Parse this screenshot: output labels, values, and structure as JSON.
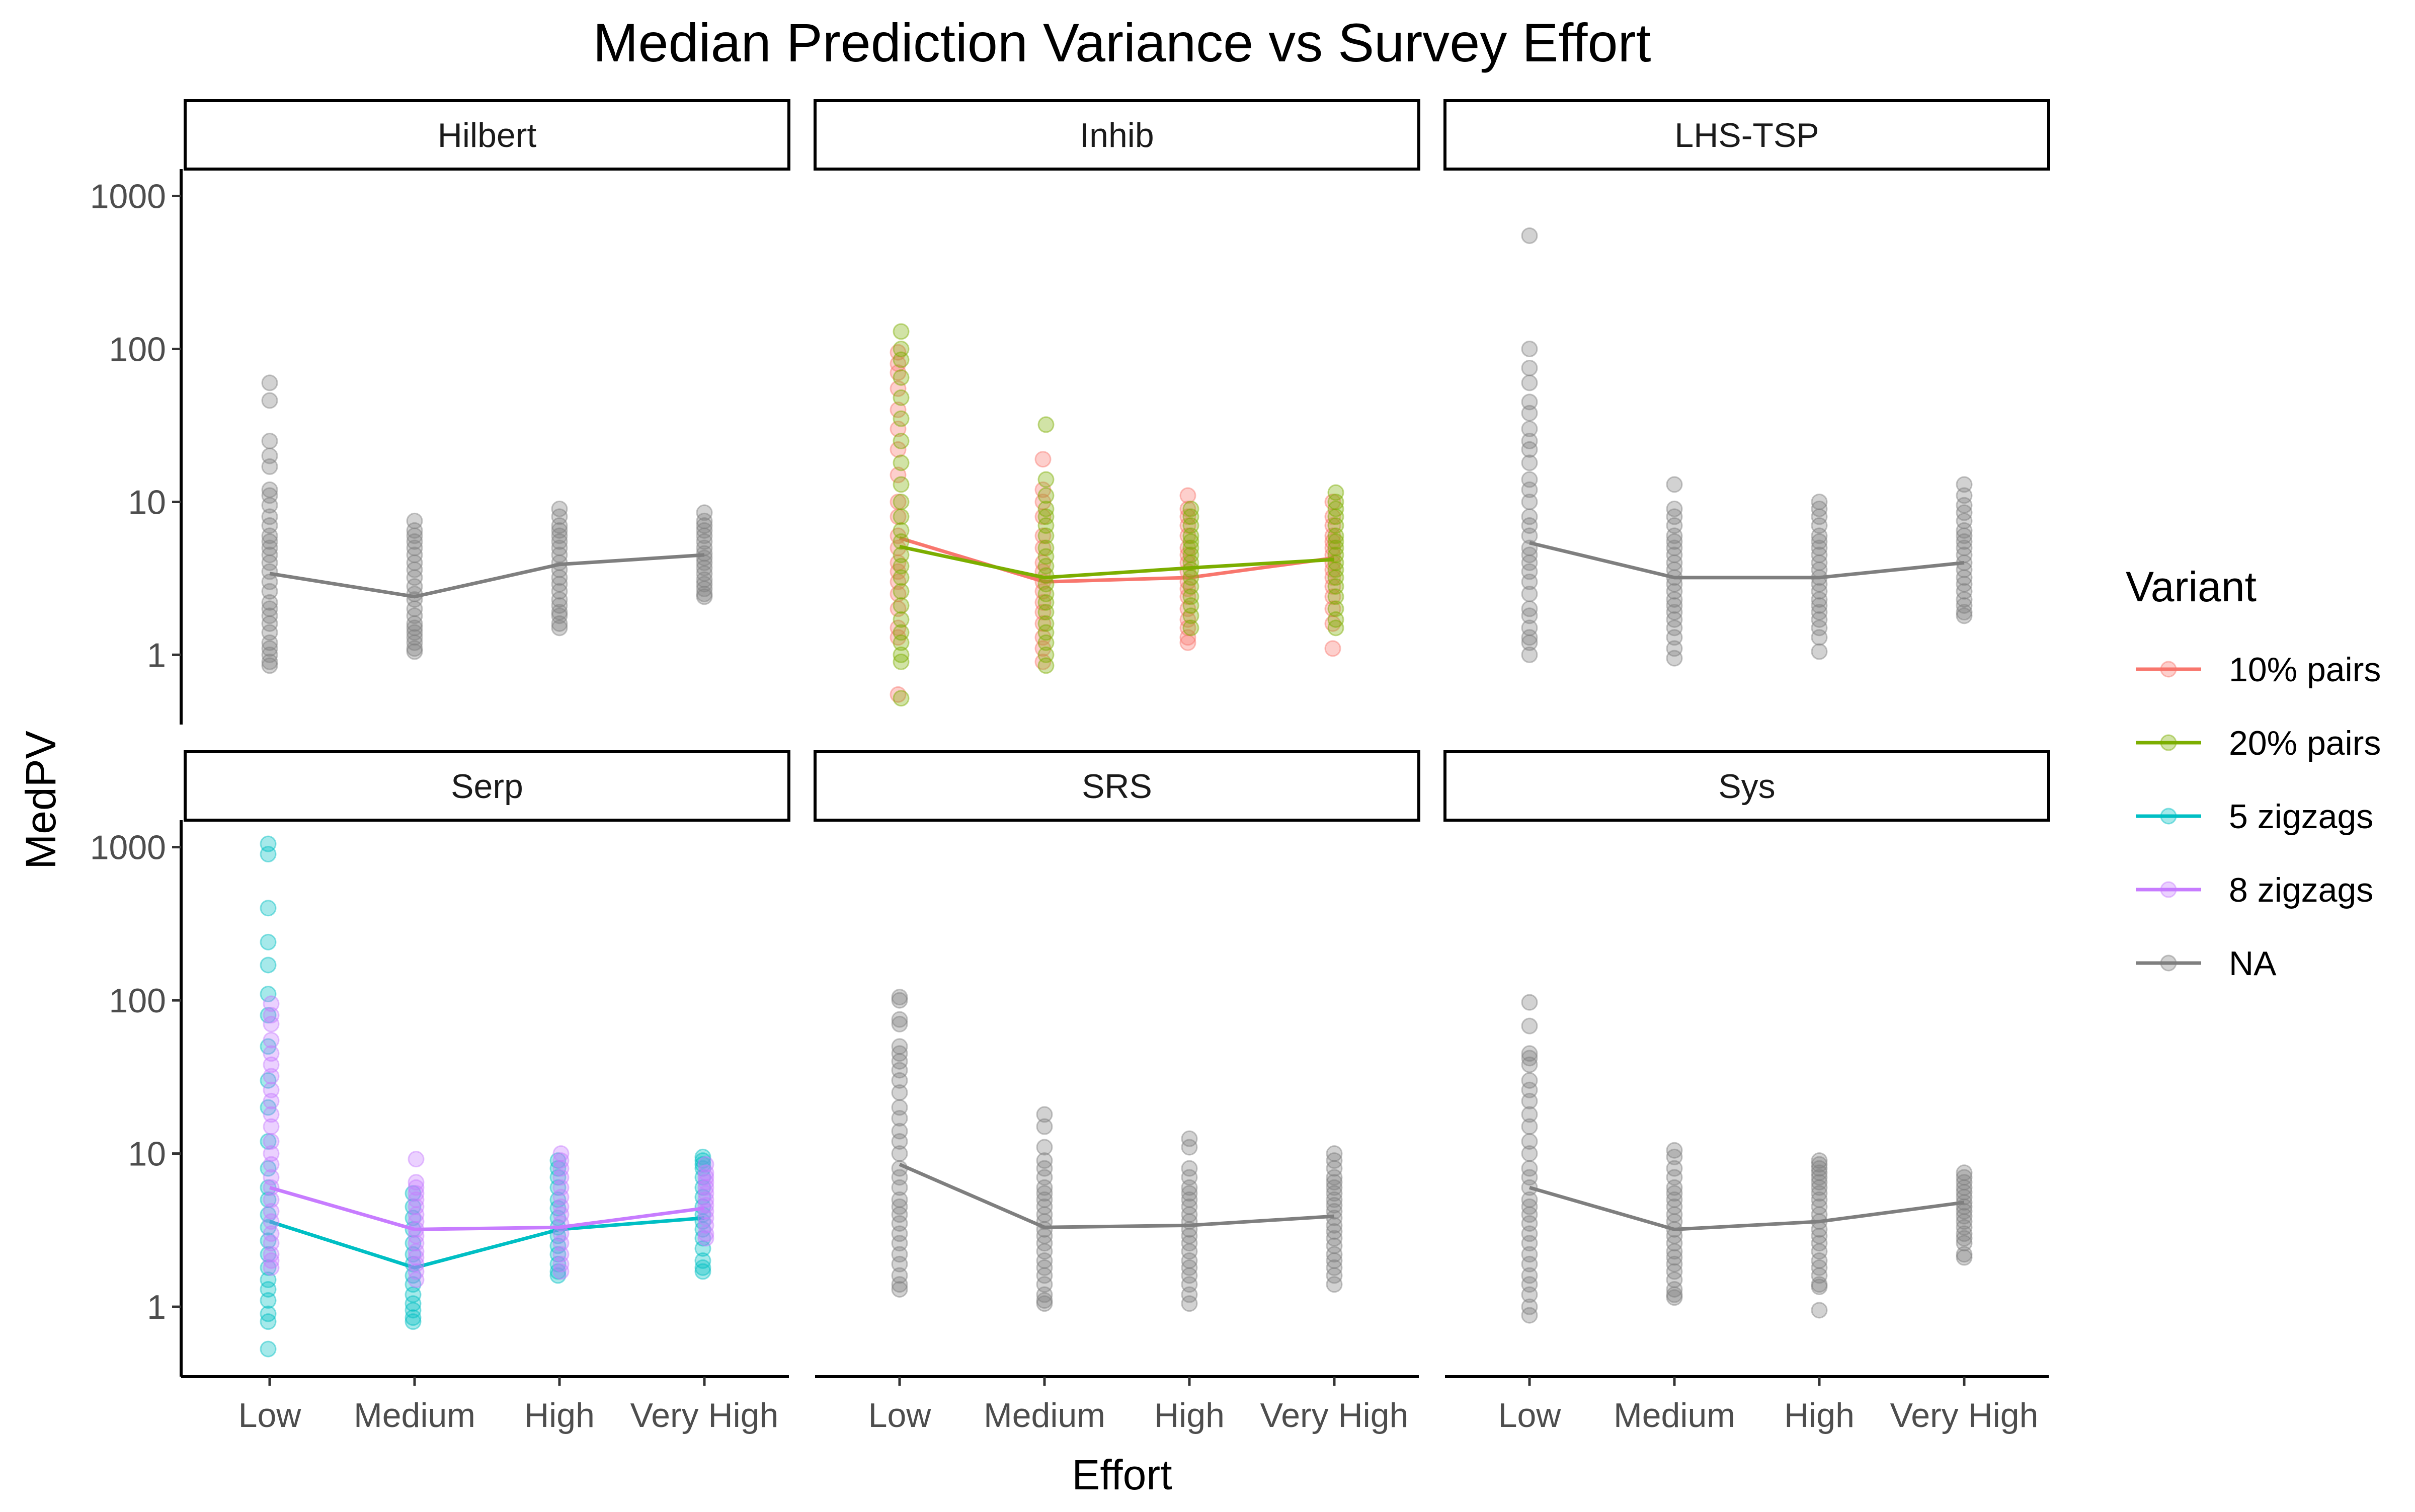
{
  "chart_data": {
    "type": "scatter",
    "title": "Median Prediction Variance vs Survey Effort",
    "xlabel": "Effort",
    "ylabel": "MedPV",
    "y_scale": "log10",
    "y_ticks": [
      1,
      10,
      100,
      1000
    ],
    "y_tick_labels": [
      "1",
      "10",
      "100",
      "1000"
    ],
    "ylim": [
      0.35,
      1500
    ],
    "categories": [
      "Low",
      "Medium",
      "High",
      "Very High"
    ],
    "grid": false,
    "legend": {
      "title": "Variant",
      "position": "right",
      "entries": [
        {
          "label": "10% pairs",
          "color": "#F8766D"
        },
        {
          "label": "20% pairs",
          "color": "#7CAE00"
        },
        {
          "label": "5 zigzags",
          "color": "#00BFC4"
        },
        {
          "label": "8 zigzags",
          "color": "#C77CFF"
        },
        {
          "label": "NA",
          "color": "#7F7F7F"
        }
      ]
    },
    "panels": [
      {
        "name": "Hilbert",
        "series": [
          {
            "variant": "NA",
            "color": "#7F7F7F",
            "medians": [
              3.4,
              2.4,
              3.9,
              4.5
            ],
            "points": [
              [
                60,
                46,
                25,
                20,
                17,
                12,
                11,
                9.5,
                8,
                7,
                6,
                5.5,
                5,
                4.5,
                4,
                3.5,
                3,
                2.6,
                2.2,
                2,
                1.8,
                1.6,
                1.4,
                1.2,
                1.1,
                1,
                0.9,
                0.85
              ],
              [
                7.5,
                6.5,
                6,
                5.5,
                5,
                4.5,
                4,
                3.6,
                3.2,
                2.8,
                2.5,
                2.3,
                2,
                1.8,
                1.6,
                1.5,
                1.4,
                1.3,
                1.2,
                1.1,
                1.05
              ],
              [
                9,
                8,
                7,
                6.5,
                6,
                5.5,
                5,
                4.5,
                4,
                3.6,
                3.2,
                2.9,
                2.6,
                2.3,
                2.1,
                1.9,
                1.8,
                1.6,
                1.5
              ],
              [
                8.5,
                7.5,
                7,
                6.5,
                6,
                5.5,
                5,
                4.6,
                4.3,
                4,
                3.7,
                3.4,
                3.1,
                2.9,
                2.7,
                2.5,
                2.4
              ]
            ]
          }
        ]
      },
      {
        "name": "Inhib",
        "series": [
          {
            "variant": "10% pairs",
            "color": "#F8766D",
            "medians": [
              5.8,
              3.0,
              3.2,
              4.3
            ],
            "points": [
              [
                95,
                80,
                70,
                55,
                40,
                30,
                22,
                15,
                10,
                8,
                6,
                5,
                4,
                3.5,
                3,
                2.5,
                2,
                1.5,
                1.3,
                0.55
              ],
              [
                19,
                12,
                10,
                8,
                6,
                5,
                4,
                3.5,
                3,
                2.6,
                2.2,
                1.9,
                1.6,
                1.3,
                1.1,
                0.9
              ],
              [
                11,
                9,
                8,
                7,
                6,
                5,
                4.5,
                4,
                3.5,
                3,
                2.7,
                2.4,
                2,
                1.7,
                1.5,
                1.3,
                1.2
              ],
              [
                10,
                8,
                7,
                6,
                5.5,
                5,
                4.5,
                4,
                3.6,
                3.2,
                2.8,
                2.4,
                2,
                1.6,
                1.1
              ]
            ]
          },
          {
            "variant": "20% pairs",
            "color": "#7CAE00",
            "medians": [
              5.1,
              3.2,
              3.7,
              4.2
            ],
            "points": [
              [
                130,
                100,
                85,
                65,
                48,
                35,
                25,
                18,
                13,
                10,
                8,
                6.5,
                5.5,
                4.5,
                3.8,
                3.2,
                2.6,
                2.1,
                1.7,
                1.4,
                1.2,
                1,
                0.9,
                0.52
              ],
              [
                32,
                14,
                11,
                9,
                8,
                7,
                6,
                5,
                4.4,
                3.8,
                3.3,
                2.9,
                2.5,
                2.2,
                1.9,
                1.6,
                1.4,
                1.2,
                1,
                0.85
              ],
              [
                9,
                8,
                7,
                6,
                5.5,
                5,
                4.5,
                4,
                3.6,
                3.2,
                2.8,
                2.4,
                2.1,
                1.8,
                1.5
              ],
              [
                11.5,
                10,
                9,
                8,
                7,
                6,
                5.5,
                5,
                4.5,
                4,
                3.6,
                3.2,
                2.8,
                2.4,
                2,
                1.7,
                1.5
              ]
            ]
          }
        ]
      },
      {
        "name": "LHS-TSP",
        "series": [
          {
            "variant": "NA",
            "color": "#7F7F7F",
            "medians": [
              5.4,
              3.2,
              3.2,
              4.0
            ],
            "points": [
              [
                550,
                100,
                75,
                60,
                45,
                38,
                30,
                25,
                22,
                18,
                14,
                12,
                10,
                8,
                7,
                6,
                5,
                4.5,
                4,
                3.5,
                3,
                2.5,
                2,
                1.8,
                1.5,
                1.3,
                1.2,
                1
              ],
              [
                13,
                9,
                8,
                7,
                6,
                5.5,
                5,
                4.5,
                4,
                3.6,
                3.2,
                2.9,
                2.6,
                2.3,
                2.1,
                1.9,
                1.7,
                1.5,
                1.3,
                1.1,
                0.95
              ],
              [
                10,
                9,
                8,
                7,
                6,
                5.5,
                5,
                4.5,
                4,
                3.6,
                3.2,
                2.9,
                2.6,
                2.3,
                2.1,
                1.9,
                1.7,
                1.5,
                1.3,
                1.05
              ],
              [
                13,
                11,
                9.5,
                8.5,
                7.5,
                6.5,
                6,
                5.5,
                5,
                4.5,
                4,
                3.6,
                3.2,
                2.9,
                2.6,
                2.3,
                2.1,
                1.9,
                1.8
              ]
            ]
          }
        ]
      },
      {
        "name": "Serp",
        "series": [
          {
            "variant": "5 zigzags",
            "color": "#00BFC4",
            "medians": [
              3.6,
              1.8,
              3.2,
              3.8
            ],
            "points": [
              [
                1050,
                900,
                400,
                240,
                170,
                110,
                80,
                50,
                30,
                20,
                12,
                8,
                6,
                5,
                4,
                3.3,
                2.7,
                2.2,
                1.8,
                1.5,
                1.3,
                1.1,
                0.9,
                0.8,
                0.53
              ],
              [
                5.5,
                4.5,
                3.8,
                3.2,
                2.6,
                2.2,
                1.9,
                1.6,
                1.4,
                1.2,
                1.05,
                0.95,
                0.85,
                0.8
              ],
              [
                9,
                8,
                7,
                6,
                5,
                4.4,
                3.8,
                3.3,
                2.9,
                2.5,
                2.2,
                1.9,
                1.7,
                1.6
              ],
              [
                9.5,
                9,
                8.5,
                8,
                7,
                6,
                5.2,
                4.5,
                4,
                3.6,
                3.2,
                2.8,
                2.4,
                2,
                1.8,
                1.7
              ]
            ]
          },
          {
            "variant": "8 zigzags",
            "color": "#C77CFF",
            "medians": [
              6.0,
              3.2,
              3.3,
              4.4
            ],
            "points": [
              [
                95,
                80,
                70,
                55,
                45,
                38,
                32,
                26,
                22,
                18,
                15,
                12,
                10,
                8.5,
                7,
                6,
                5,
                4.2,
                3.6,
                3,
                2.6,
                2.2,
                2,
                1.8
              ],
              [
                9.2,
                6.5,
                6,
                5.5,
                5,
                4.5,
                4,
                3.6,
                3.2,
                2.9,
                2.6,
                2.3,
                2.1,
                1.9,
                1.7,
                1.5
              ],
              [
                10,
                9,
                8,
                7,
                6,
                5.2,
                4.5,
                4,
                3.5,
                3,
                2.6,
                2.2,
                1.9,
                1.7
              ],
              [
                8.5,
                7.5,
                7,
                6.5,
                6,
                5.5,
                5,
                4.6,
                4.2,
                3.8,
                3.4,
                3,
                2.8
              ]
            ]
          }
        ]
      },
      {
        "name": "SRS",
        "series": [
          {
            "variant": "NA",
            "color": "#7F7F7F",
            "medians": [
              8.5,
              3.3,
              3.4,
              3.9
            ],
            "points": [
              [
                105,
                100,
                75,
                70,
                50,
                45,
                40,
                35,
                30,
                25,
                20,
                17,
                14,
                12,
                10,
                8,
                7,
                6,
                5,
                4.5,
                4,
                3.5,
                3,
                2.6,
                2.2,
                1.9,
                1.6,
                1.4,
                1.3
              ],
              [
                18,
                15,
                11,
                9,
                8,
                7,
                6,
                5.5,
                5,
                4.5,
                4,
                3.6,
                3.2,
                2.9,
                2.6,
                2.3,
                2,
                1.8,
                1.6,
                1.4,
                1.2,
                1.1,
                1.05
              ],
              [
                12.5,
                11,
                8,
                7,
                6,
                5.5,
                5,
                4.5,
                4,
                3.6,
                3.2,
                2.9,
                2.6,
                2.3,
                2,
                1.8,
                1.6,
                1.4,
                1.2,
                1.05
              ],
              [
                10,
                9,
                8,
                7,
                6.5,
                6,
                5.5,
                5,
                4.6,
                4.2,
                3.8,
                3.4,
                3.1,
                2.8,
                2.5,
                2.2,
                2,
                1.8,
                1.6,
                1.4
              ]
            ]
          }
        ]
      },
      {
        "name": "Sys",
        "series": [
          {
            "variant": "NA",
            "color": "#7F7F7F",
            "medians": [
              6.0,
              3.2,
              3.6,
              4.8
            ],
            "points": [
              [
                97,
                68,
                45,
                42,
                38,
                30,
                26,
                22,
                18,
                15,
                12,
                10,
                8,
                7,
                6,
                5,
                4.5,
                4,
                3.5,
                3,
                2.6,
                2.2,
                1.9,
                1.6,
                1.4,
                1.2,
                1,
                0.88
              ],
              [
                10.5,
                9.5,
                8,
                7,
                6,
                5.5,
                5,
                4.5,
                4,
                3.6,
                3.2,
                2.9,
                2.6,
                2.3,
                2.1,
                1.9,
                1.7,
                1.5,
                1.3,
                1.2,
                1.15
              ],
              [
                9,
                8.5,
                8,
                7.5,
                7,
                6.5,
                6,
                5.5,
                5,
                4.5,
                4,
                3.6,
                3.2,
                2.9,
                2.6,
                2.3,
                2,
                1.8,
                1.6,
                1.4,
                1.35,
                0.95
              ],
              [
                7.5,
                7,
                6.5,
                6,
                5.6,
                5.2,
                4.8,
                4.5,
                4.2,
                3.9,
                3.6,
                3.3,
                3,
                2.8,
                2.6,
                2.2,
                2.1
              ]
            ]
          }
        ]
      }
    ]
  }
}
